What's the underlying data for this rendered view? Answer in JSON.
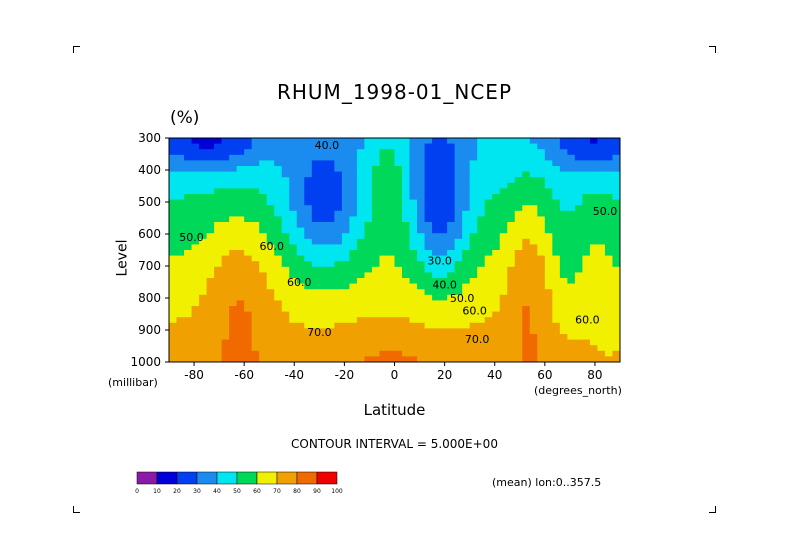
{
  "chart_data": {
    "type": "contour",
    "title": "RHUM_1998-01_NCEP",
    "units": "(%)",
    "ylabel": "Level",
    "y_unit": "(millibar)",
    "xlabel": "Latitude",
    "x_unit": "(degrees_north)",
    "x_ticks": [
      -80,
      -60,
      -40,
      -20,
      0,
      20,
      40,
      60,
      80
    ],
    "y_ticks": [
      300,
      400,
      500,
      600,
      700,
      800,
      900,
      1000
    ],
    "xlim": [
      -90,
      90
    ],
    "ylim": [
      1000,
      300
    ],
    "y_reversed": true,
    "contour_interval_text": "CONTOUR INTERVAL = 5.000E+00",
    "subset_text": "(mean) lon:0..357.5",
    "contour_labels": [
      {
        "text": "40.0",
        "lat": -27,
        "level": 335
      },
      {
        "text": "50.0",
        "lat": -81,
        "level": 622
      },
      {
        "text": "60.0",
        "lat": -49,
        "level": 650
      },
      {
        "text": "60.0",
        "lat": -38,
        "level": 762
      },
      {
        "text": "70.0",
        "lat": -30,
        "level": 918
      },
      {
        "text": "30.0",
        "lat": 18,
        "level": 695
      },
      {
        "text": "40.0",
        "lat": 20,
        "level": 770
      },
      {
        "text": "50.0",
        "lat": 27,
        "level": 812
      },
      {
        "text": "60.0",
        "lat": 32,
        "level": 852
      },
      {
        "text": "70.0",
        "lat": 33,
        "level": 940
      },
      {
        "text": "60.0",
        "lat": 77,
        "level": 880
      },
      {
        "text": "50.0",
        "lat": 84,
        "level": 540
      }
    ],
    "colorbar": {
      "tick_labels": [
        "0",
        "10",
        "20",
        "30",
        "40",
        "50",
        "60",
        "70",
        "80",
        "90",
        "100"
      ],
      "colors": [
        "#8a1aa8",
        "#0000d8",
        "#0040f0",
        "#1a8cf0",
        "#00e6f0",
        "#00d85a",
        "#f0f000",
        "#f0a000",
        "#f06a00",
        "#f00000"
      ]
    },
    "grid": false
  }
}
